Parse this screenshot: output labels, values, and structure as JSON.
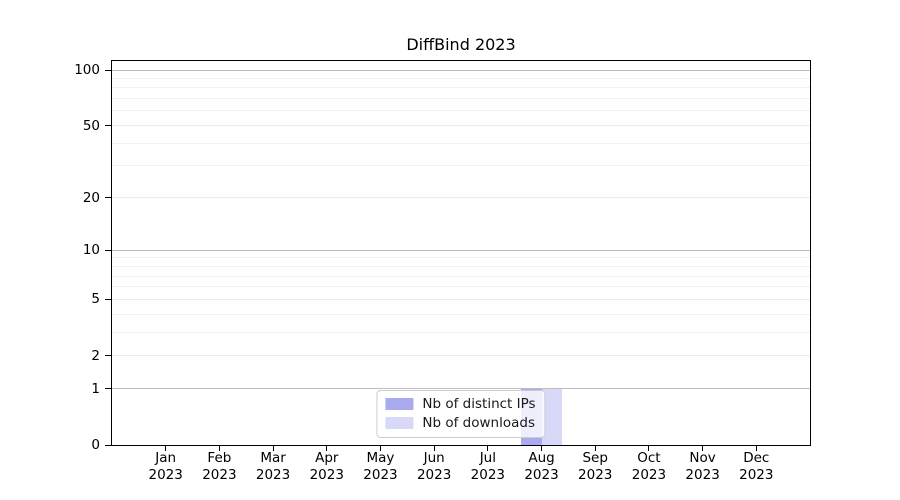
{
  "chart_data": {
    "type": "bar",
    "title": "DiffBind 2023",
    "x_categories": [
      "Jan",
      "Feb",
      "Mar",
      "Apr",
      "May",
      "Jun",
      "Jul",
      "Aug",
      "Sep",
      "Oct",
      "Nov",
      "Dec"
    ],
    "x_year": "2023",
    "series": [
      {
        "name": "Nb of distinct IPs",
        "color": "#aaaaee",
        "values": [
          0,
          0,
          0,
          0,
          0,
          0,
          0,
          1,
          0,
          0,
          0,
          0
        ]
      },
      {
        "name": "Nb of downloads",
        "color": "#d8d8f8",
        "values": [
          0,
          0,
          0,
          0,
          0,
          0,
          0,
          1,
          0,
          0,
          0,
          0
        ]
      }
    ],
    "xlabel": "",
    "ylabel": "",
    "ylim": [
      0,
      100
    ],
    "y_scale": "log1p",
    "y_major_ticks": [
      0,
      1,
      2,
      5,
      10,
      20,
      50,
      100
    ],
    "gridlines": {
      "power": [
        1,
        10,
        100
      ],
      "major": [
        2,
        5,
        20,
        50
      ],
      "minor": [
        3,
        4,
        6,
        7,
        8,
        9,
        30,
        40,
        60,
        70,
        80,
        90
      ]
    },
    "grid": "horizontal",
    "legend_position": "lower-center",
    "colors": {
      "bar_distinct_ips": "#aaaaee",
      "bar_downloads": "#d8d8f8",
      "power_grid": "#bdbdbd",
      "major_grid": "#ebebeb",
      "minor_grid": "#f1f1f1",
      "spine": "#000000"
    }
  }
}
